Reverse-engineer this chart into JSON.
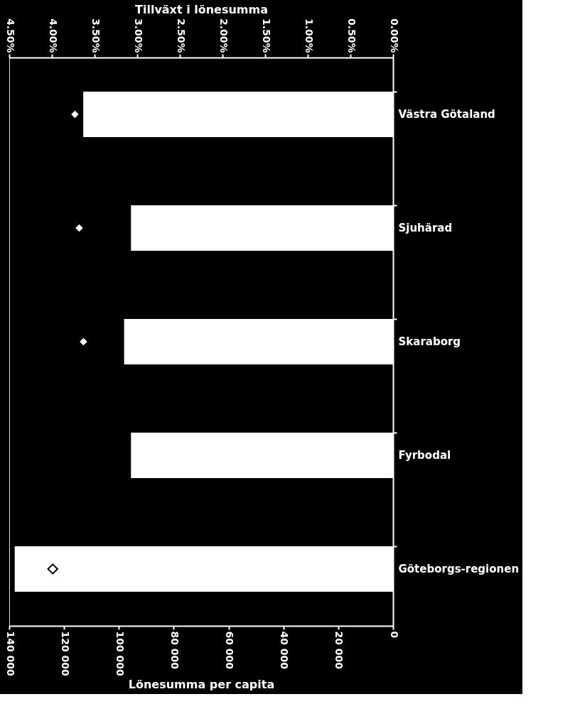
{
  "chart_data": {
    "type": "bar",
    "orientation": "horizontal",
    "categories": [
      "Västra Götaland",
      "Sjuhärad",
      "Skaraborg",
      "Fyrbodal",
      "Göteborgs-regionen"
    ],
    "xlabel": "Lönesumma per capita",
    "x2label": "Tillväxt i lönesumma",
    "xlim": [
      140000,
      0
    ],
    "xticks": [
      {
        "value": 140000,
        "label": "140 000"
      },
      {
        "value": 120000,
        "label": "120 000"
      },
      {
        "value": 100000,
        "label": "100 000"
      },
      {
        "value": 80000,
        "label": "80 000"
      },
      {
        "value": 60000,
        "label": "60 000"
      },
      {
        "value": 40000,
        "label": "40 000"
      },
      {
        "value": 20000,
        "label": "20 000"
      },
      0
    ],
    "x2lim": [
      4.5,
      0
    ],
    "x2ticks": [
      {
        "value": 4.5,
        "label": "4.50%"
      },
      {
        "value": 4.0,
        "label": "4.00%"
      },
      {
        "value": 3.5,
        "label": "3.50%"
      },
      {
        "value": 3.0,
        "label": "3.00%"
      },
      {
        "value": 2.5,
        "label": "2.50%"
      },
      {
        "value": 2.0,
        "label": "2.00%"
      },
      {
        "value": 1.5,
        "label": "1.50%"
      },
      {
        "value": 1.0,
        "label": "1.00%"
      },
      {
        "value": 0.5,
        "label": "0.50%"
      },
      {
        "value": 0.0,
        "label": "0.00%"
      }
    ],
    "series": [
      {
        "color": "#ffffff",
        "values": [
          113000,
          95600,
          98100,
          95600,
          138000
        ]
      },
      {
        "type": "scatter",
        "axis": "x2",
        "marker": "diamond",
        "color": "#ffffff",
        "values": [
          3.73,
          3.68,
          3.63,
          null,
          3.99
        ]
      }
    ],
    "grid": false
  }
}
